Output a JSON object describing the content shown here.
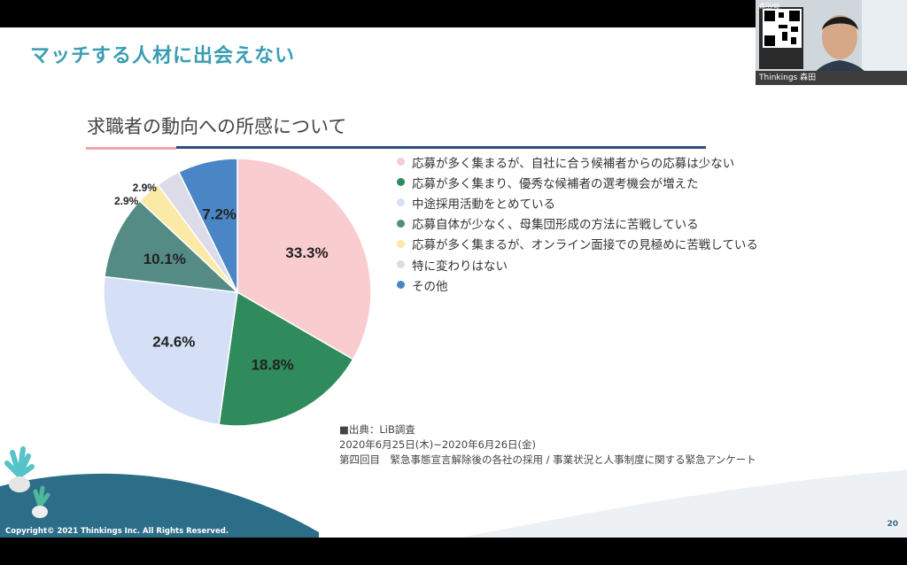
{
  "slide": {
    "heading": "マッチする人材に出会えない",
    "subtitle": "求職者の動向への所感について",
    "page_number": "20",
    "copyright": "Copyright© 2021 Thinkings Inc.  All Rights Reserved."
  },
  "chart_data": {
    "type": "pie",
    "title": "求職者の動向への所感について",
    "start": "12 o'clock, clockwise",
    "slices": [
      {
        "label": "応募が多く集まるが、自社に合う候補者からの応募は少ない",
        "value": 33.3,
        "display": "33.3%",
        "color": "#f9ccd0"
      },
      {
        "label": "応募が多く集まり、優秀な候補者の選考機会が増えた",
        "value": 18.8,
        "display": "18.8%",
        "color": "#2f8a5c"
      },
      {
        "label": "中途採用活動をとめている",
        "value": 24.6,
        "display": "24.6%",
        "color": "#d5e0f7"
      },
      {
        "label": "応募自体が少なく、母集団形成の方法に苦戦している",
        "value": 10.1,
        "display": "10.1%",
        "color": "#548c85"
      },
      {
        "label": "応募が多く集まるが、オンライン面接での見極めに苦戦している",
        "value": 2.9,
        "display": "2.9%",
        "color": "#fbe9a6"
      },
      {
        "label": "特に変わりはない",
        "value": 2.9,
        "display": "2.9%",
        "color": "#dcdbe8"
      },
      {
        "label": "その他",
        "value": 7.2,
        "display": "7.2%",
        "color": "#4a86c5"
      }
    ]
  },
  "source": {
    "line1": "■出典：LiB調査",
    "line2": "2020年6月25日(木)~2020年6月26日(金)",
    "line3": "第四回目　緊急事態宣言解除後の各社の採用 / 事業状況と人事制度に関する緊急アンケート"
  },
  "webcam": {
    "name": "Thinkings 森田",
    "top_label": "森田/総"
  }
}
